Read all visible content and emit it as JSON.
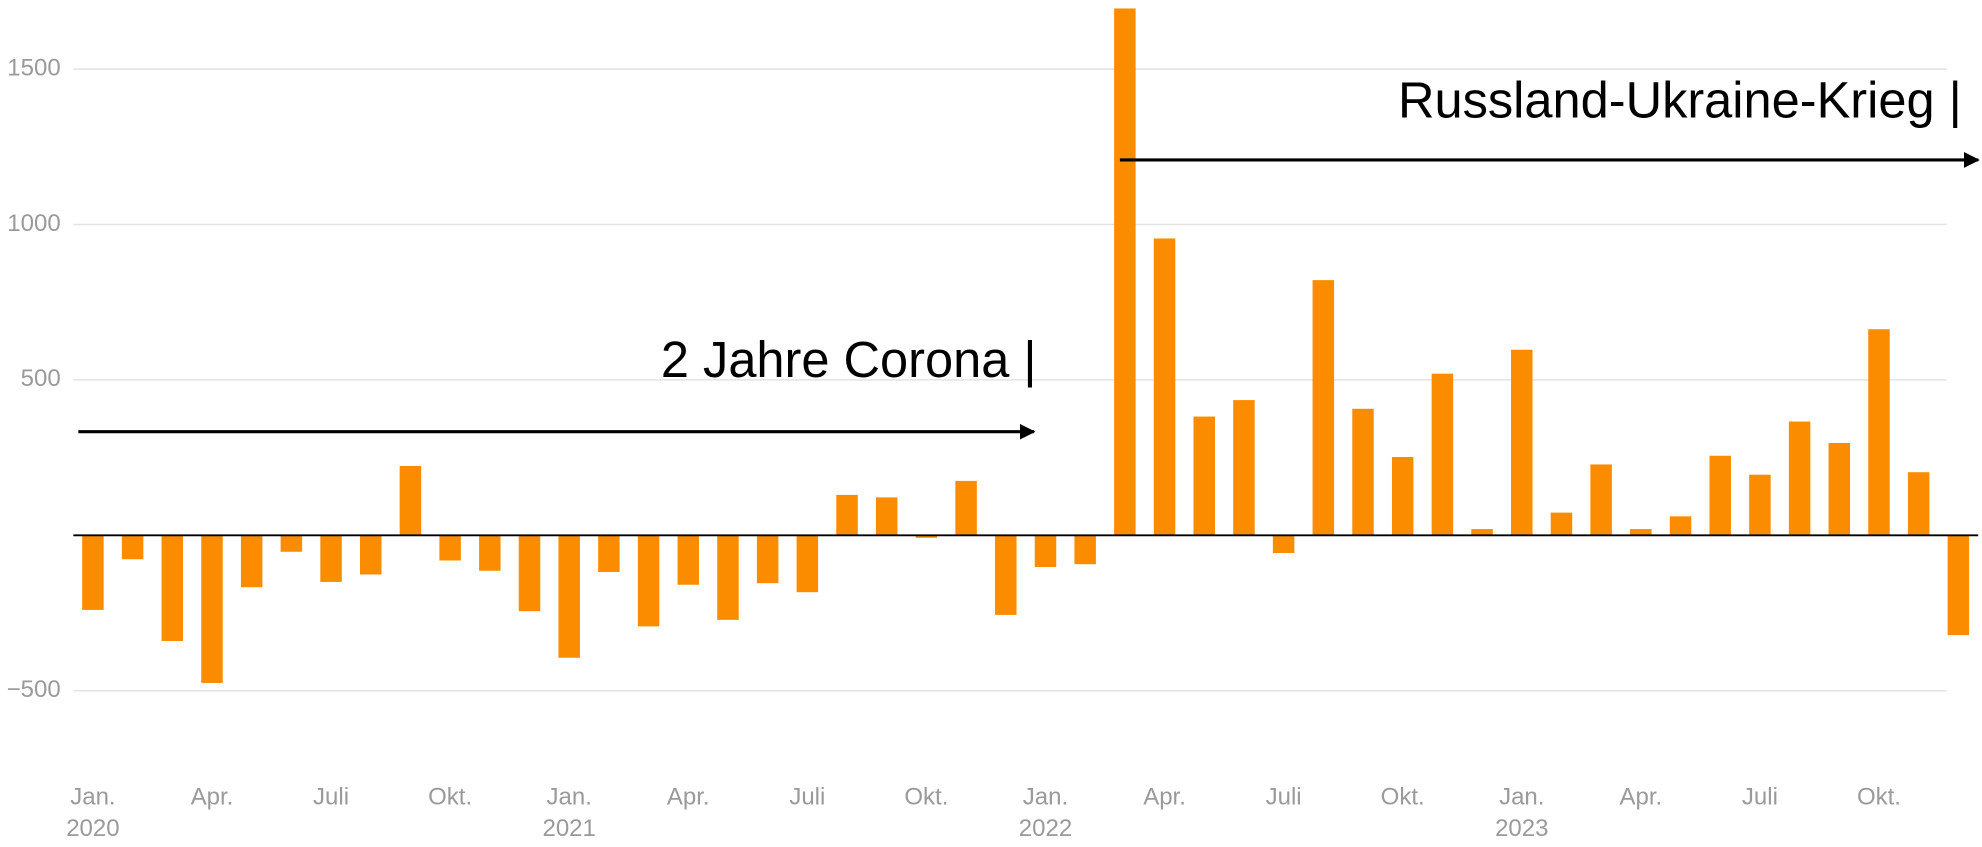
{
  "chart_data": {
    "type": "bar",
    "categories": [
      "Jan. 2020",
      null,
      null,
      "Apr.",
      null,
      null,
      "Juli",
      null,
      null,
      "Okt.",
      null,
      null,
      "Jan. 2021",
      null,
      null,
      "Apr.",
      null,
      null,
      "Juli",
      null,
      null,
      "Okt.",
      null,
      null,
      "Jan. 2022",
      null,
      null,
      "Apr.",
      null,
      null,
      "Juli",
      null,
      null,
      "Okt.",
      null,
      null,
      "Jan. 2023",
      null,
      null,
      "Apr.",
      null,
      null,
      "Juli",
      null,
      null,
      "Okt.",
      null,
      null
    ],
    "values": [
      -240,
      -77,
      -340,
      -475,
      -167,
      -53,
      -150,
      -126,
      223,
      -81,
      -114,
      -244,
      -394,
      -118,
      -293,
      -159,
      -272,
      -154,
      -183,
      130,
      122,
      -8,
      175,
      -256,
      -102,
      -93,
      1695,
      955,
      382,
      435,
      -57,
      821,
      407,
      252,
      520,
      20,
      597,
      73,
      228,
      20,
      61,
      256,
      195,
      366,
      297,
      663,
      203,
      -321
    ],
    "color": "#fb8c00",
    "ylim": [
      -720,
      1720
    ],
    "yticks": [
      {
        "value": -500,
        "label": "−500"
      },
      500,
      1000,
      1500
    ],
    "grid": true,
    "annotations": [
      "2 Jahre Corona |",
      "Russland-Ukraine-Krieg |"
    ]
  }
}
